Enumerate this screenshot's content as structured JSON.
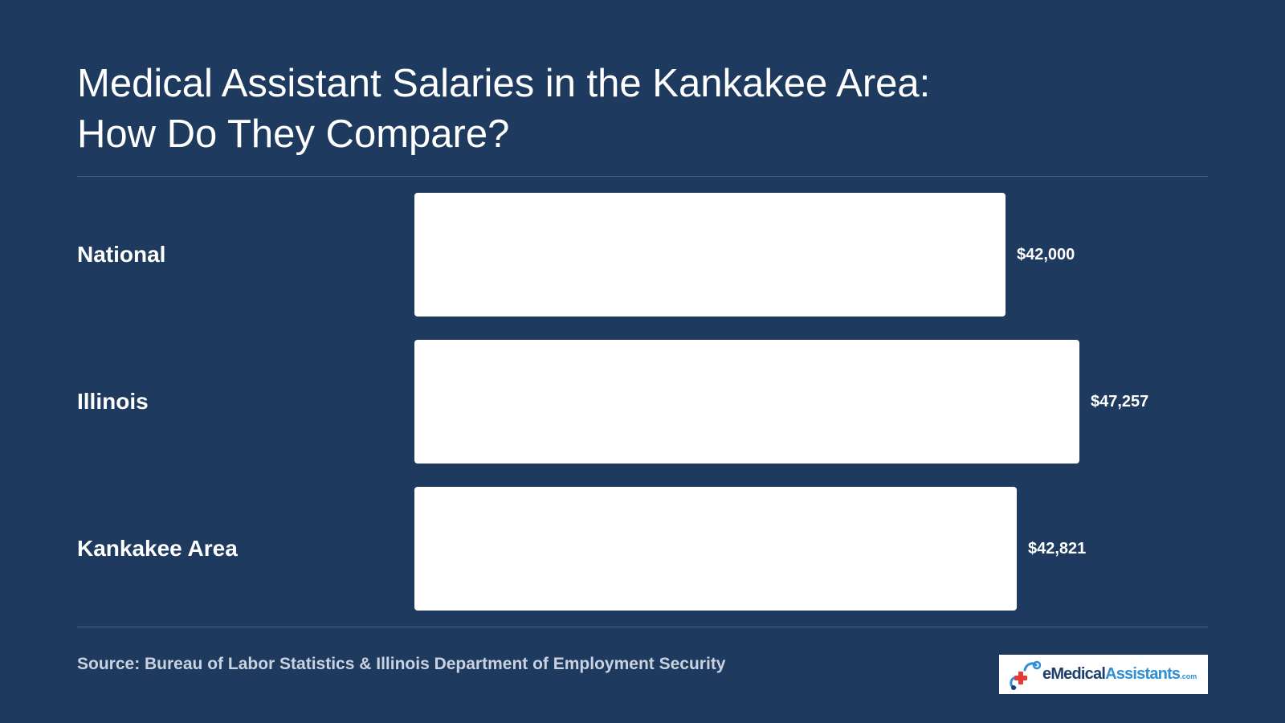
{
  "title": {
    "line1": "Medical Assistant Salaries in the Kankakee Area:",
    "line2": "How Do They Compare?"
  },
  "source": "Source: Bureau of Labor Statistics & Illinois Department of Employment Security",
  "logo": {
    "brand_text_dark": "eMedical",
    "brand_text_blue": "Assistants",
    "brand_suffix": ".com",
    "icon": "stethoscope-cross-icon"
  },
  "colors": {
    "background": "#1f3a5f",
    "bar": "#ffffff",
    "text": "#ffffff",
    "source_text": "#c9d3e0"
  },
  "chart_data": {
    "type": "bar",
    "orientation": "horizontal",
    "categories": [
      "National",
      "Illinois",
      "Kankakee Area"
    ],
    "values": [
      42000,
      47257,
      42821
    ],
    "value_labels": [
      "$42,000",
      "$47,257",
      "$42,821"
    ],
    "title": "Medical Assistant Salaries in the Kankakee Area: How Do They Compare?",
    "xlabel": "",
    "ylabel": "",
    "grid": false,
    "legend": "none"
  }
}
